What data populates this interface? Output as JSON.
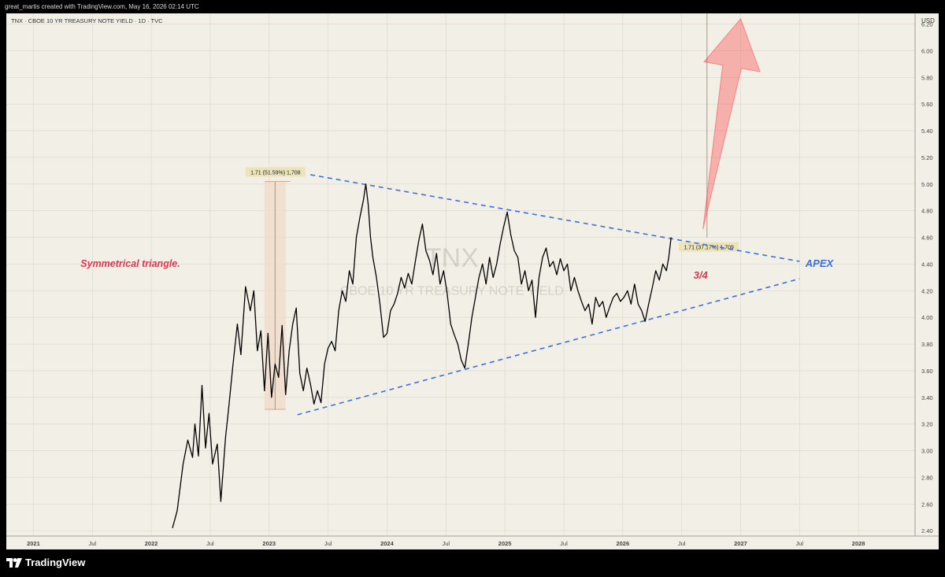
{
  "header": {
    "caption": "great_martis created with TradingView.com, May 16, 2026 02:14 UTC"
  },
  "chart_data": {
    "type": "line",
    "title": "TNX · CBOE 10 YR TREASURY NOTE YIELD · 1D · TVC",
    "watermark_symbol": "TNX",
    "watermark_name": "CBOE 10 YR TREASURY NOTE YIELD",
    "currency": "USD",
    "ylim": [
      2.36,
      6.28
    ],
    "y_ticks": [
      "2.40",
      "2.60",
      "2.80",
      "3.00",
      "3.20",
      "3.40",
      "3.60",
      "3.80",
      "4.00",
      "4.20",
      "4.40",
      "4.60",
      "4.80",
      "5.00",
      "5.20",
      "5.40",
      "5.60",
      "5.80",
      "6.00",
      "6.20"
    ],
    "y_tick_values": [
      2.4,
      2.6,
      2.8,
      3.0,
      3.2,
      3.4,
      3.6,
      3.8,
      4.0,
      4.2,
      4.4,
      4.6,
      4.8,
      5.0,
      5.2,
      5.4,
      5.6,
      5.8,
      6.0,
      6.2
    ],
    "xlim": [
      2020.77,
      2028.48
    ],
    "x_ticks": [
      {
        "label": "2021",
        "t": 2021.0
      },
      {
        "label": "Jul",
        "t": 2021.5
      },
      {
        "label": "2022",
        "t": 2022.0
      },
      {
        "label": "Jul",
        "t": 2022.5
      },
      {
        "label": "2023",
        "t": 2023.0
      },
      {
        "label": "Jul",
        "t": 2023.5
      },
      {
        "label": "2024",
        "t": 2024.0
      },
      {
        "label": "Jul",
        "t": 2024.5
      },
      {
        "label": "2025",
        "t": 2025.0
      },
      {
        "label": "Jul",
        "t": 2025.5
      },
      {
        "label": "2026",
        "t": 2026.0
      },
      {
        "label": "Jul",
        "t": 2026.5
      },
      {
        "label": "2027",
        "t": 2027.0
      },
      {
        "label": "Jul",
        "t": 2027.5
      },
      {
        "label": "2028",
        "t": 2028.0
      }
    ],
    "series": [
      {
        "color": "#000000",
        "points": [
          [
            2022.18,
            2.42
          ],
          [
            2022.22,
            2.55
          ],
          [
            2022.27,
            2.9
          ],
          [
            2022.31,
            3.08
          ],
          [
            2022.35,
            2.95
          ],
          [
            2022.37,
            3.2
          ],
          [
            2022.4,
            2.96
          ],
          [
            2022.43,
            3.49
          ],
          [
            2022.46,
            3.02
          ],
          [
            2022.49,
            3.28
          ],
          [
            2022.52,
            2.9
          ],
          [
            2022.56,
            3.05
          ],
          [
            2022.59,
            2.62
          ],
          [
            2022.63,
            3.1
          ],
          [
            2022.66,
            3.35
          ],
          [
            2022.69,
            3.62
          ],
          [
            2022.73,
            3.95
          ],
          [
            2022.76,
            3.72
          ],
          [
            2022.8,
            4.23
          ],
          [
            2022.84,
            4.05
          ],
          [
            2022.87,
            4.2
          ],
          [
            2022.9,
            3.75
          ],
          [
            2022.93,
            3.9
          ],
          [
            2022.96,
            3.45
          ],
          [
            2022.99,
            3.88
          ],
          [
            2023.02,
            3.4
          ],
          [
            2023.05,
            3.65
          ],
          [
            2023.08,
            3.55
          ],
          [
            2023.11,
            3.94
          ],
          [
            2023.14,
            3.42
          ],
          [
            2023.17,
            3.75
          ],
          [
            2023.2,
            3.95
          ],
          [
            2023.23,
            4.07
          ],
          [
            2023.26,
            3.58
          ],
          [
            2023.29,
            3.45
          ],
          [
            2023.32,
            3.62
          ],
          [
            2023.35,
            3.5
          ],
          [
            2023.38,
            3.35
          ],
          [
            2023.41,
            3.45
          ],
          [
            2023.44,
            3.36
          ],
          [
            2023.47,
            3.65
          ],
          [
            2023.5,
            3.77
          ],
          [
            2023.53,
            3.82
          ],
          [
            2023.56,
            3.75
          ],
          [
            2023.59,
            4.05
          ],
          [
            2023.62,
            4.2
          ],
          [
            2023.65,
            4.12
          ],
          [
            2023.68,
            4.35
          ],
          [
            2023.71,
            4.25
          ],
          [
            2023.74,
            4.6
          ],
          [
            2023.77,
            4.75
          ],
          [
            2023.8,
            4.88
          ],
          [
            2023.82,
            5.0
          ],
          [
            2023.84,
            4.85
          ],
          [
            2023.86,
            4.6
          ],
          [
            2023.88,
            4.45
          ],
          [
            2023.91,
            4.3
          ],
          [
            2023.94,
            4.1
          ],
          [
            2023.97,
            3.85
          ],
          [
            2024.0,
            3.88
          ],
          [
            2024.03,
            4.05
          ],
          [
            2024.06,
            4.1
          ],
          [
            2024.09,
            4.18
          ],
          [
            2024.12,
            4.3
          ],
          [
            2024.15,
            4.22
          ],
          [
            2024.18,
            4.33
          ],
          [
            2024.21,
            4.25
          ],
          [
            2024.24,
            4.42
          ],
          [
            2024.27,
            4.58
          ],
          [
            2024.3,
            4.7
          ],
          [
            2024.33,
            4.5
          ],
          [
            2024.36,
            4.43
          ],
          [
            2024.39,
            4.32
          ],
          [
            2024.42,
            4.48
          ],
          [
            2024.45,
            4.25
          ],
          [
            2024.48,
            4.35
          ],
          [
            2024.51,
            4.18
          ],
          [
            2024.54,
            3.95
          ],
          [
            2024.57,
            3.87
          ],
          [
            2024.6,
            3.8
          ],
          [
            2024.63,
            3.68
          ],
          [
            2024.66,
            3.62
          ],
          [
            2024.69,
            3.8
          ],
          [
            2024.72,
            4.0
          ],
          [
            2024.75,
            4.15
          ],
          [
            2024.78,
            4.3
          ],
          [
            2024.81,
            4.4
          ],
          [
            2024.84,
            4.25
          ],
          [
            2024.87,
            4.45
          ],
          [
            2024.9,
            4.3
          ],
          [
            2024.93,
            4.4
          ],
          [
            2024.96,
            4.55
          ],
          [
            2024.99,
            4.68
          ],
          [
            2025.02,
            4.79
          ],
          [
            2025.05,
            4.62
          ],
          [
            2025.08,
            4.5
          ],
          [
            2025.11,
            4.45
          ],
          [
            2025.14,
            4.25
          ],
          [
            2025.17,
            4.35
          ],
          [
            2025.2,
            4.2
          ],
          [
            2025.23,
            4.28
          ],
          [
            2025.26,
            4.0
          ],
          [
            2025.29,
            4.3
          ],
          [
            2025.32,
            4.45
          ],
          [
            2025.35,
            4.52
          ],
          [
            2025.38,
            4.38
          ],
          [
            2025.41,
            4.42
          ],
          [
            2025.44,
            4.32
          ],
          [
            2025.47,
            4.44
          ],
          [
            2025.5,
            4.35
          ],
          [
            2025.53,
            4.4
          ],
          [
            2025.56,
            4.2
          ],
          [
            2025.59,
            4.3
          ],
          [
            2025.62,
            4.2
          ],
          [
            2025.65,
            4.12
          ],
          [
            2025.68,
            4.05
          ],
          [
            2025.71,
            4.1
          ],
          [
            2025.74,
            3.95
          ],
          [
            2025.77,
            4.15
          ],
          [
            2025.8,
            4.08
          ],
          [
            2025.83,
            4.12
          ],
          [
            2025.86,
            4.0
          ],
          [
            2025.89,
            4.08
          ],
          [
            2025.92,
            4.15
          ],
          [
            2025.95,
            4.18
          ],
          [
            2025.98,
            4.12
          ],
          [
            2026.01,
            4.15
          ],
          [
            2026.04,
            4.2
          ],
          [
            2026.07,
            4.1
          ],
          [
            2026.1,
            4.25
          ],
          [
            2026.13,
            4.1
          ],
          [
            2026.16,
            4.05
          ],
          [
            2026.19,
            3.97
          ],
          [
            2026.22,
            4.1
          ],
          [
            2026.25,
            4.22
          ],
          [
            2026.28,
            4.35
          ],
          [
            2026.31,
            4.28
          ],
          [
            2026.34,
            4.4
          ],
          [
            2026.37,
            4.35
          ],
          [
            2026.39,
            4.45
          ],
          [
            2026.41,
            4.6
          ]
        ]
      }
    ],
    "trendlines": [
      {
        "name": "upper",
        "color": "#3b6fe0",
        "from": [
          2023.35,
          5.07
        ],
        "to": [
          2027.5,
          4.42
        ]
      },
      {
        "name": "lower",
        "color": "#3b6fe0",
        "from": [
          2023.24,
          3.27
        ],
        "to": [
          2027.5,
          4.29
        ]
      }
    ],
    "measures": [
      {
        "label": "1.71 (51.59%) 1,708",
        "t0": 2022.96,
        "t1": 2023.14,
        "from": 3.31,
        "to": 5.02,
        "fill": "#f0d9c8",
        "stroke": "#c8a58a"
      },
      {
        "label": "1.71 (37.17%) 1,709",
        "t0": 2026.71,
        "t1": 2026.72,
        "from": 4.6,
        "to": 6.31,
        "fill": "#f0d9c8",
        "stroke": "#c8a58a"
      }
    ],
    "projection_arrow": {
      "color": "#ff3b3b",
      "base_t": 2026.68,
      "base_v": 4.66,
      "tip_t": 2027.0,
      "tip_v": 6.24
    },
    "annotations": [
      {
        "text": "Symmetrical triangle.",
        "t": 2021.4,
        "v": 4.38,
        "color": "#e0364a"
      },
      {
        "text": "3/4",
        "t": 2026.6,
        "v": 4.29,
        "color": "#e0364a"
      },
      {
        "text": "APEX",
        "t": 2027.55,
        "v": 4.38,
        "color": "#3b6fe0"
      }
    ],
    "grid": true,
    "colors": {
      "background": "#f2efe6",
      "grid": "#dad7cf",
      "axis_text": "#444444"
    }
  },
  "footer": {
    "brand": "TradingView"
  }
}
